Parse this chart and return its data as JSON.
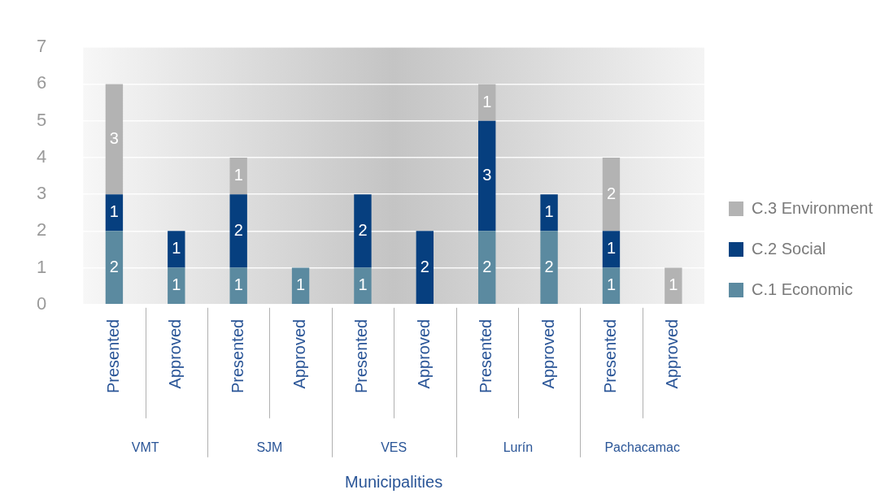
{
  "chart_data": {
    "type": "bar",
    "stacked": true,
    "xlabel": "Municipalities",
    "categories": [
      "Presented",
      "Approved",
      "Presented",
      "Approved",
      "Presented",
      "Approved",
      "Presented",
      "Approved",
      "Presented",
      "Approved"
    ],
    "annotations": [
      "VMT",
      "SJM",
      "VES",
      "Lurín",
      "Pachacamac"
    ],
    "series": [
      {
        "name": "C.1 Economic",
        "color": "#5b8aa0",
        "values": [
          2,
          1,
          1,
          1,
          1,
          null,
          2,
          2,
          1,
          null
        ]
      },
      {
        "name": "C.2 Social",
        "color": "#063f7f",
        "values": [
          1,
          1,
          2,
          null,
          2,
          2,
          3,
          1,
          1,
          null
        ]
      },
      {
        "name": "C.3 Environment",
        "color": "#b3b3b3",
        "values": [
          3,
          null,
          1,
          null,
          null,
          null,
          1,
          null,
          2,
          1
        ]
      }
    ],
    "ylim": [
      0,
      7
    ],
    "yticks": [
      0,
      1,
      2,
      3,
      4,
      5,
      6,
      7
    ],
    "grid": "y",
    "legend": "right",
    "data_labels": true
  }
}
